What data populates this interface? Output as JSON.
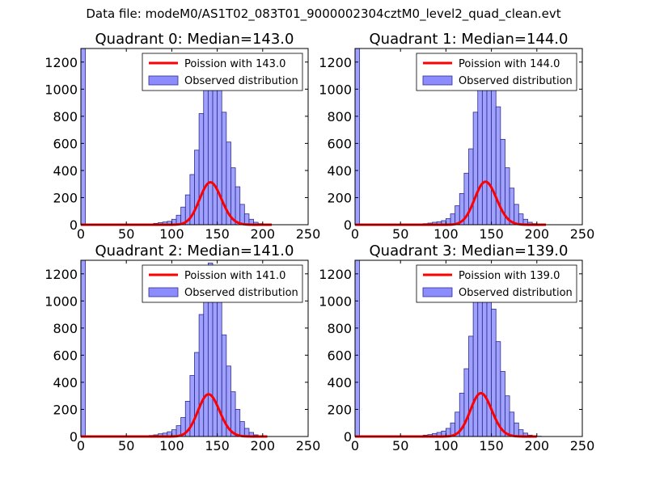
{
  "figure": {
    "suptitle": "Data file: modeM0/AS1T02_083T01_9000002304cztM0_level2_quad_clean.evt"
  },
  "colors": {
    "bar_fill": "#8080ff",
    "bar_edge": "#2d2d8c",
    "poisson_line": "#ff0000",
    "axes": "#000000",
    "background": "#ffffff"
  },
  "chart_data": [
    {
      "type": "bar",
      "title": "Quadrant 0: Median=143.0",
      "xlim": [
        0,
        250
      ],
      "ylim": [
        0,
        1300
      ],
      "xticks": [
        0,
        50,
        100,
        150,
        200,
        250
      ],
      "yticks": [
        0,
        200,
        400,
        600,
        800,
        1000,
        1200
      ],
      "grid": false,
      "legend_position": "upper-right",
      "line": {
        "name": "Poission with 143.0",
        "mean": 143.0,
        "x_range": [
          0,
          210
        ]
      },
      "hist": {
        "name": "Observed distribution",
        "bin_width": 5,
        "bins_start": [
          0,
          70,
          75,
          80,
          85,
          90,
          95,
          100,
          105,
          110,
          115,
          120,
          125,
          130,
          135,
          140,
          145,
          150,
          155,
          160,
          165,
          170,
          175,
          180,
          185,
          190,
          195,
          200
        ],
        "counts": [
          1300,
          5,
          6,
          10,
          15,
          20,
          25,
          40,
          70,
          130,
          220,
          370,
          550,
          820,
          1080,
          1250,
          1250,
          1080,
          830,
          610,
          420,
          280,
          150,
          80,
          40,
          18,
          8,
          3
        ]
      }
    },
    {
      "type": "bar",
      "title": "Quadrant 1: Median=144.0",
      "xlim": [
        0,
        250
      ],
      "ylim": [
        0,
        1300
      ],
      "xticks": [
        0,
        50,
        100,
        150,
        200,
        250
      ],
      "yticks": [
        0,
        200,
        400,
        600,
        800,
        1000,
        1200
      ],
      "grid": false,
      "legend_position": "upper-right",
      "line": {
        "name": "Poission with 144.0",
        "mean": 144.0,
        "x_range": [
          0,
          210
        ]
      },
      "hist": {
        "name": "Observed distribution",
        "bin_width": 5,
        "bins_start": [
          0,
          70,
          75,
          80,
          85,
          90,
          95,
          100,
          105,
          110,
          115,
          120,
          125,
          130,
          135,
          140,
          145,
          150,
          155,
          160,
          165,
          170,
          175,
          180,
          185,
          190,
          195,
          200
        ],
        "counts": [
          1300,
          5,
          8,
          12,
          18,
          22,
          30,
          45,
          80,
          140,
          230,
          380,
          560,
          830,
          1080,
          1250,
          1260,
          1100,
          870,
          630,
          420,
          270,
          150,
          80,
          40,
          18,
          8,
          3
        ]
      }
    },
    {
      "type": "bar",
      "title": "Quadrant 2: Median=141.0",
      "xlim": [
        0,
        250
      ],
      "ylim": [
        0,
        1300
      ],
      "xticks": [
        0,
        50,
        100,
        150,
        200,
        250
      ],
      "yticks": [
        0,
        200,
        400,
        600,
        800,
        1000,
        1200
      ],
      "grid": false,
      "legend_position": "upper-right",
      "line": {
        "name": "Poission with 141.0",
        "mean": 141.0,
        "x_range": [
          0,
          205
        ]
      },
      "hist": {
        "name": "Observed distribution",
        "bin_width": 5,
        "bins_start": [
          0,
          70,
          75,
          80,
          85,
          90,
          95,
          100,
          105,
          110,
          115,
          120,
          125,
          130,
          135,
          140,
          145,
          150,
          155,
          160,
          165,
          170,
          175,
          180,
          185,
          190,
          195,
          200
        ],
        "counts": [
          1300,
          6,
          8,
          12,
          20,
          25,
          35,
          50,
          80,
          140,
          260,
          450,
          620,
          900,
          1150,
          1280,
          1220,
          1000,
          750,
          520,
          330,
          200,
          110,
          60,
          30,
          12,
          5,
          2
        ]
      }
    },
    {
      "type": "bar",
      "title": "Quadrant 3: Median=139.0",
      "xlim": [
        0,
        250
      ],
      "ylim": [
        0,
        1300
      ],
      "xticks": [
        0,
        50,
        100,
        150,
        200,
        250
      ],
      "yticks": [
        0,
        200,
        400,
        600,
        800,
        1000,
        1200
      ],
      "grid": false,
      "legend_position": "upper-right",
      "line": {
        "name": "Poission with 139.0",
        "mean": 139.0,
        "x_range": [
          0,
          200
        ]
      },
      "hist": {
        "name": "Observed distribution",
        "bin_width": 5,
        "bins_start": [
          0,
          70,
          75,
          80,
          85,
          90,
          95,
          100,
          105,
          110,
          115,
          120,
          125,
          130,
          135,
          140,
          145,
          150,
          155,
          160,
          165,
          170,
          175,
          180,
          185,
          190,
          195,
          200
        ],
        "counts": [
          1300,
          6,
          10,
          14,
          22,
          30,
          40,
          60,
          100,
          180,
          320,
          500,
          740,
          1000,
          1220,
          1260,
          1150,
          940,
          700,
          480,
          300,
          180,
          100,
          50,
          25,
          10,
          4,
          2
        ]
      }
    }
  ]
}
